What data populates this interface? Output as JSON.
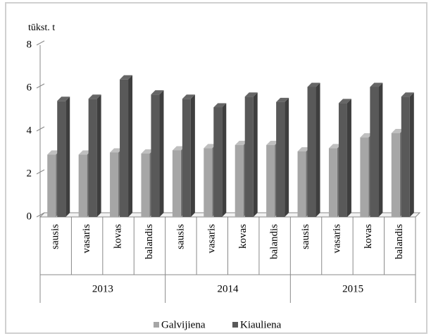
{
  "chart_data": {
    "type": "bar3d",
    "y_label": "tūkst. t",
    "categories": [
      "sausis",
      "vasaris",
      "kovas",
      "balandis",
      "sausis",
      "vasaris",
      "kovas",
      "balandis",
      "sausis",
      "vasaris",
      "kovas",
      "balandis"
    ],
    "groups": [
      "2013",
      "2014",
      "2015"
    ],
    "series": [
      {
        "name": "Galvijiena",
        "color": "#a6a6a6",
        "values": [
          2.9,
          2.9,
          3.0,
          2.95,
          3.1,
          3.2,
          3.35,
          3.35,
          3.05,
          3.2,
          3.7,
          3.9
        ]
      },
      {
        "name": "Kiauliena",
        "color": "#595959",
        "values": [
          5.4,
          5.5,
          6.4,
          5.7,
          5.5,
          5.1,
          5.6,
          5.35,
          6.05,
          5.3,
          6.05,
          5.6
        ]
      }
    ],
    "ylim": [
      0,
      8
    ],
    "yticks": [
      0,
      2,
      4,
      6,
      8
    ],
    "legend": "bottom"
  }
}
